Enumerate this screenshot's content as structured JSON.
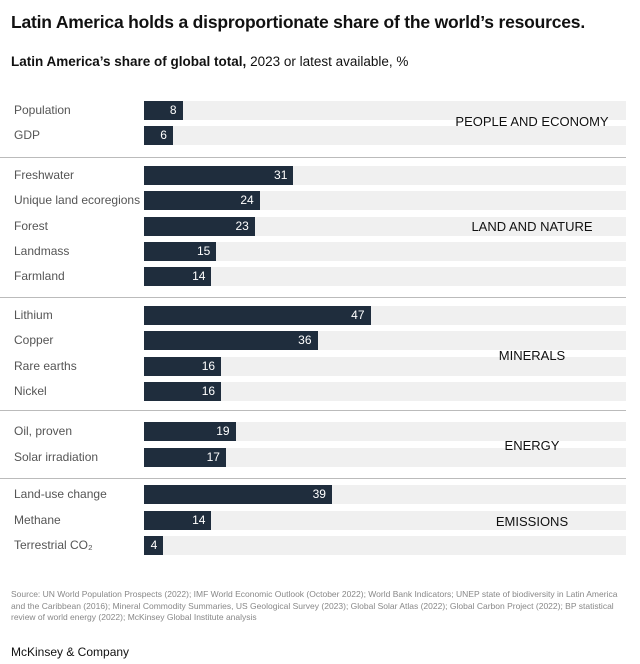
{
  "title": "Latin America holds a disproportionate share of the world’s resources.",
  "subtitle_bold": "Latin America’s share of global total,",
  "subtitle_rest": " 2023 or latest available, %",
  "source": "Source: UN World Population Prospects (2022); IMF World Economic Outlook (October 2022); World Bank Indicators; UNEP state of biodiversity in Latin America and the Caribbean (2016); Mineral Commodity Summaries, US Geological Survey (2023); Global Solar Atlas (2022); Global Carbon Project (2022); BP statistical review of world energy (2022); McKinsey Global Institute analysis",
  "brand": "McKinsey & Company",
  "colors": {
    "bar": "#1f2d3d",
    "track": "#f0f0f0"
  },
  "chart_data": {
    "type": "bar",
    "orientation": "horizontal",
    "xlim": [
      0,
      100
    ],
    "groups": [
      {
        "name": "PEOPLE AND ECONOMY",
        "categories": [
          "Population",
          "GDP"
        ],
        "values": [
          8,
          6
        ]
      },
      {
        "name": "LAND AND NATURE",
        "categories": [
          "Freshwater",
          "Unique land ecoregions",
          "Forest",
          "Landmass",
          "Farmland"
        ],
        "values": [
          31,
          24,
          23,
          15,
          14
        ]
      },
      {
        "name": "MINERALS",
        "categories": [
          "Lithium",
          "Copper",
          "Rare earths",
          "Nickel"
        ],
        "values": [
          47,
          36,
          16,
          16
        ]
      },
      {
        "name": "ENERGY",
        "categories": [
          "Oil, proven",
          "Solar irradiation"
        ],
        "values": [
          19,
          17
        ]
      },
      {
        "name": "EMISSIONS",
        "categories": [
          "Land-use change",
          "Methane",
          "Terrestrial CO₂"
        ],
        "values": [
          39,
          14,
          4
        ]
      }
    ]
  }
}
